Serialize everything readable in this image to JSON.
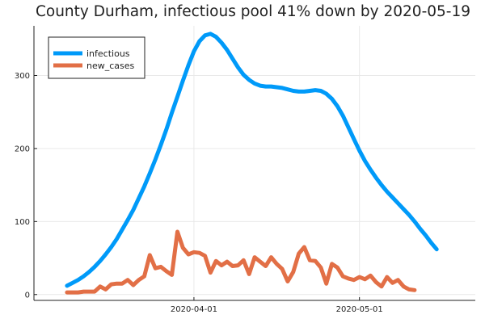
{
  "chart_data": {
    "type": "line",
    "title": "County Durham, infectious pool 41% down by 2020-05-19",
    "xlabel": "",
    "ylabel": "",
    "x_start": "2020-03-09",
    "x_end": "2020-05-19",
    "xlim": [
      "2020-03-03",
      "2020-05-22"
    ],
    "ylim": [
      -8,
      368
    ],
    "x_ticks": [
      {
        "date": "2020-04-01",
        "label": "2020-04-01"
      },
      {
        "date": "2020-05-01",
        "label": "2020-05-01"
      }
    ],
    "y_ticks": [
      {
        "value": 0,
        "label": "0"
      },
      {
        "value": 100,
        "label": "100"
      },
      {
        "value": 200,
        "label": "200"
      },
      {
        "value": 300,
        "label": "300"
      }
    ],
    "grid": true,
    "legend_position": "top-left",
    "series": [
      {
        "name": "infectious",
        "color": "#009af9",
        "values": [
          12,
          16,
          20,
          25,
          31,
          38,
          46,
          55,
          65,
          76,
          89,
          102,
          116,
          132,
          148,
          166,
          185,
          205,
          226,
          249,
          271,
          293,
          314,
          333,
          347,
          355,
          357,
          353,
          345,
          335,
          323,
          311,
          301,
          294,
          289,
          286,
          285,
          285,
          284,
          283,
          281,
          279,
          278,
          278,
          279,
          280,
          279,
          275,
          268,
          258,
          245,
          229,
          213,
          197,
          183,
          171,
          160,
          150,
          141,
          133,
          125,
          117,
          109,
          100,
          90,
          81,
          71,
          62
        ]
      },
      {
        "name": "new_cases",
        "color": "#e26f46",
        "values": [
          3,
          3,
          3,
          4,
          4,
          4,
          11,
          7,
          14,
          15,
          15,
          20,
          13,
          20,
          25,
          54,
          36,
          38,
          32,
          27,
          86,
          64,
          55,
          58,
          57,
          53,
          30,
          46,
          40,
          45,
          39,
          40,
          47,
          28,
          51,
          45,
          39,
          51,
          42,
          35,
          18,
          31,
          56,
          65,
          47,
          46,
          37,
          15,
          42,
          37,
          25,
          22,
          20,
          24,
          21,
          26,
          17,
          11,
          24,
          16,
          20,
          11,
          7,
          6
        ]
      }
    ]
  }
}
